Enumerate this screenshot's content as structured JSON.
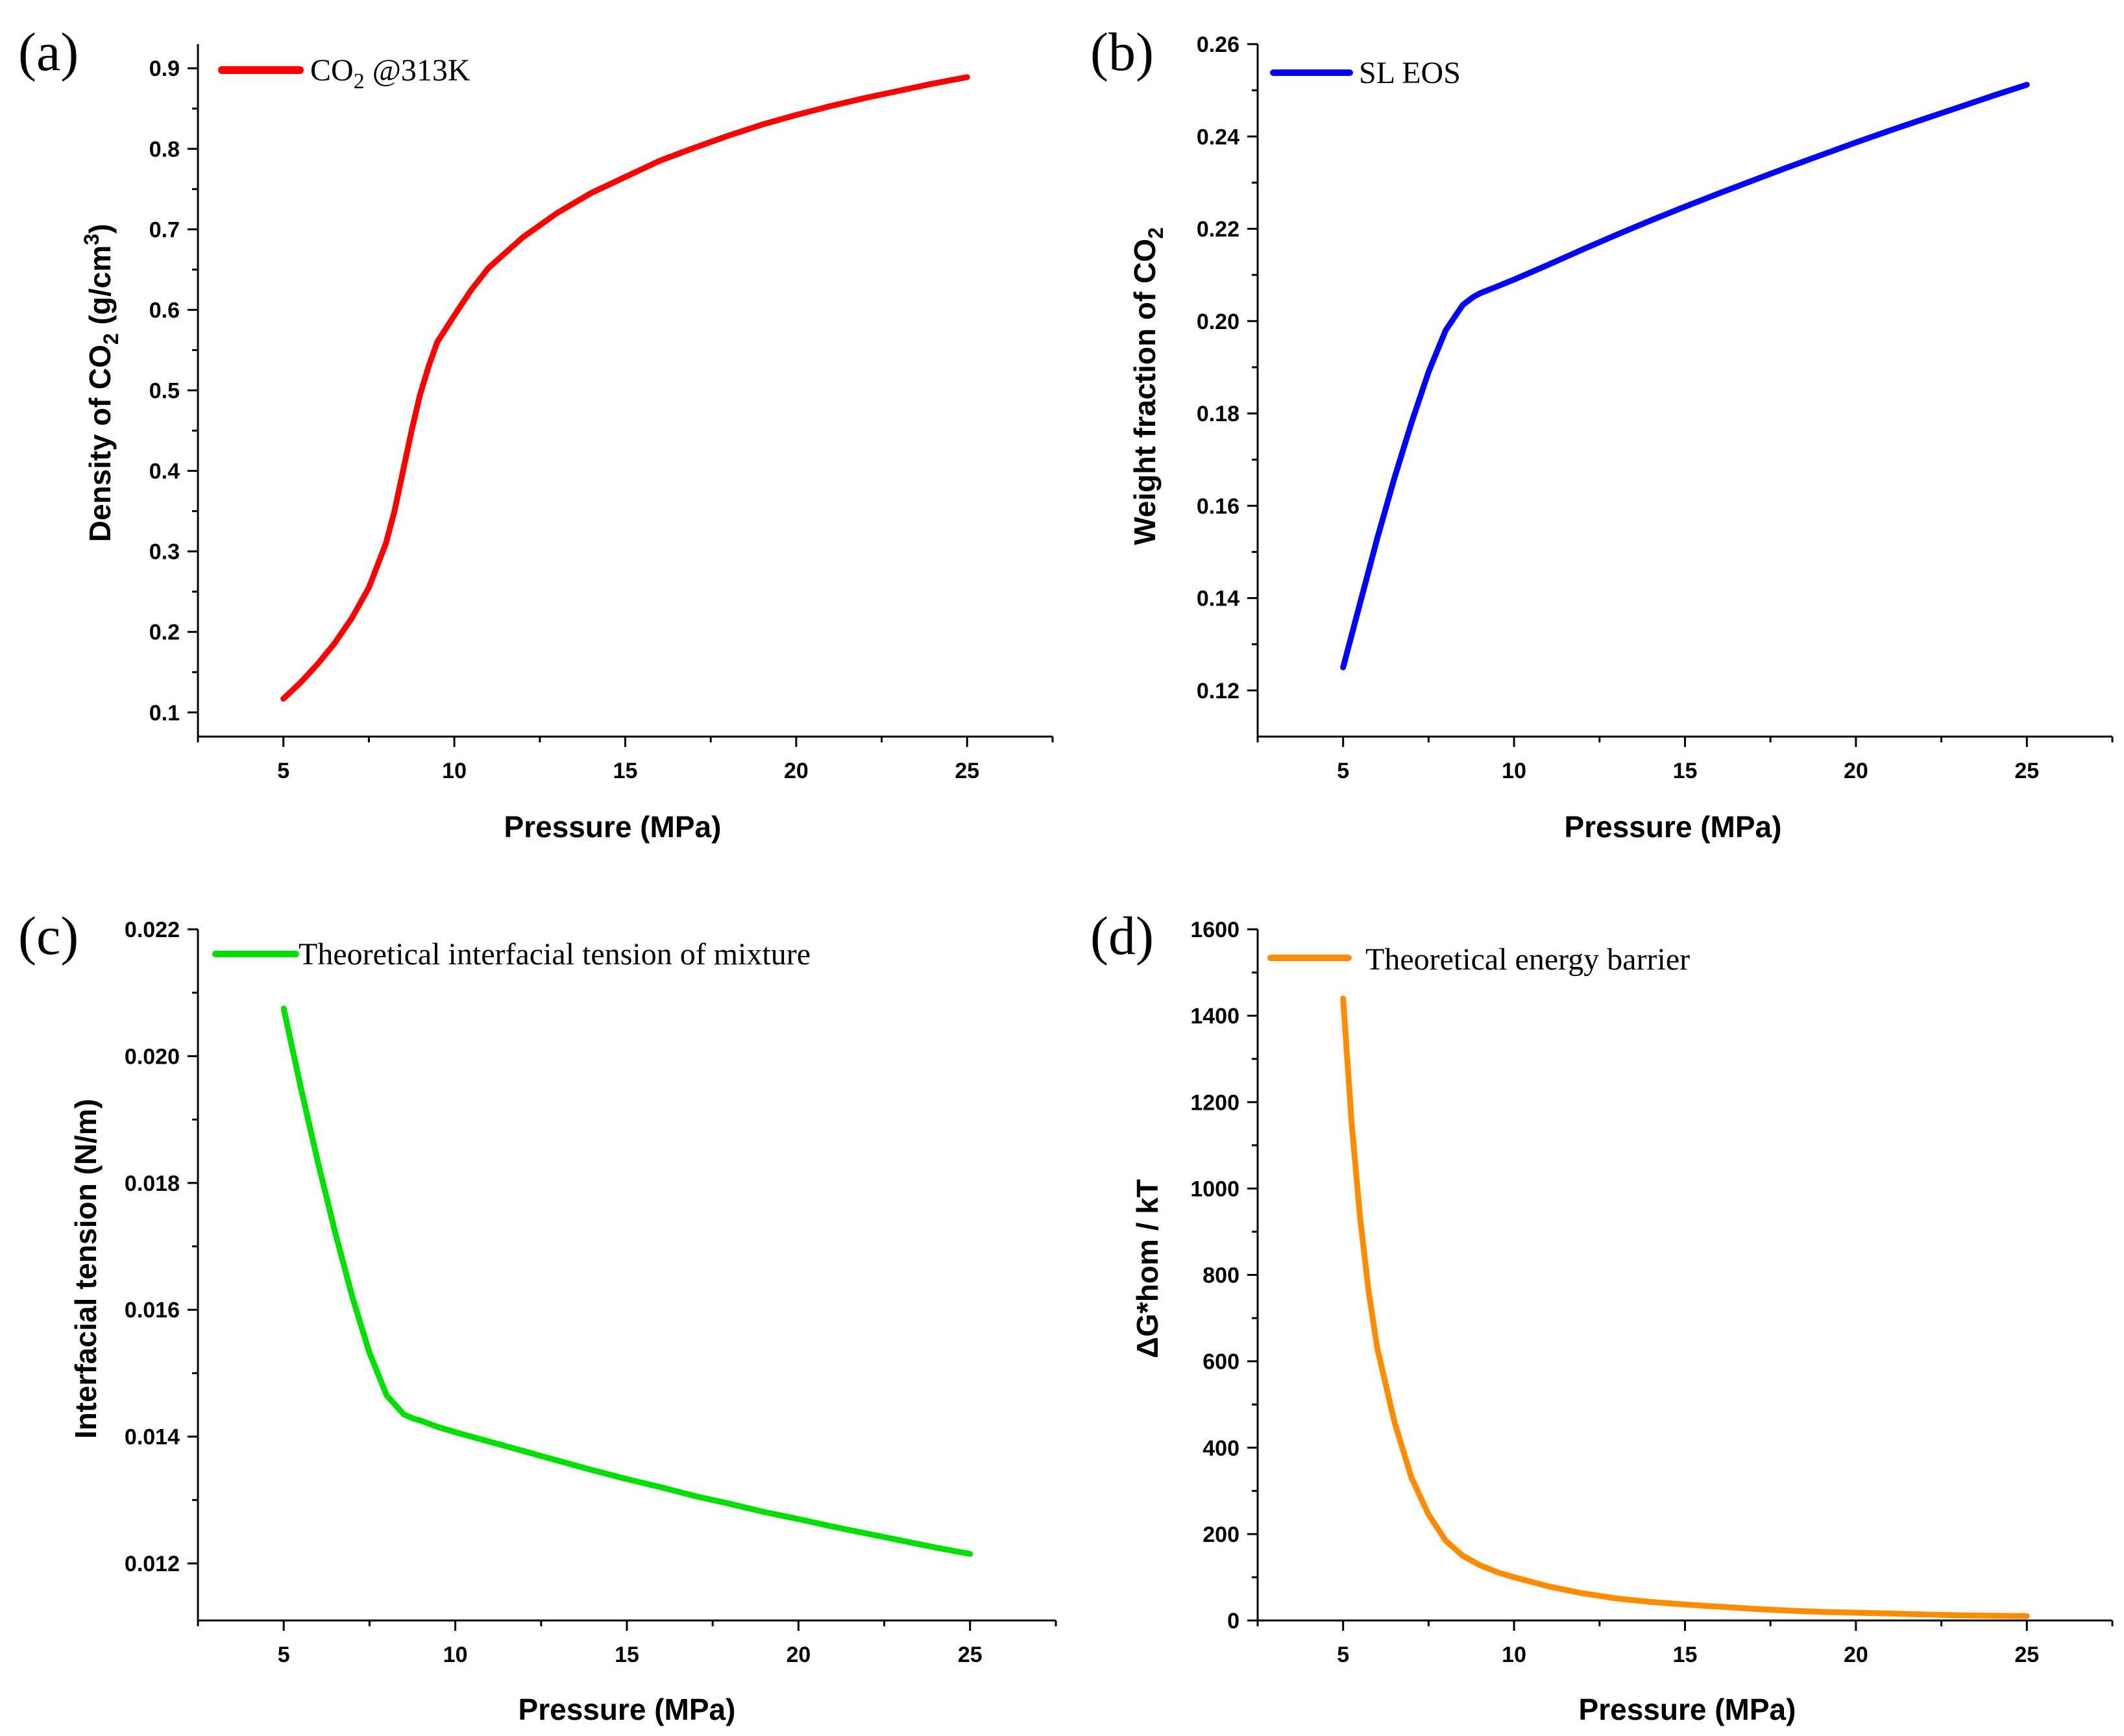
{
  "chart_data": [
    {
      "type": "line",
      "panel_label": "(a)",
      "xlabel": "Pressure (MPa)",
      "ylabel_parts": [
        "Density of CO",
        "2",
        " (g/cm",
        "3",
        ")"
      ],
      "xlim": [
        2.5,
        27.5
      ],
      "ylim": [
        0.07,
        0.93
      ],
      "xticks": [
        5,
        10,
        15,
        20,
        25
      ],
      "yticks": [
        0.1,
        0.2,
        0.3,
        0.4,
        0.5,
        0.6,
        0.7,
        0.8,
        0.9
      ],
      "xtick_labels": [
        "5",
        "10",
        "15",
        "20",
        "25"
      ],
      "ytick_labels": [
        "0.1",
        "0.2",
        "0.3",
        "0.4",
        "0.5",
        "0.6",
        "0.7",
        "0.8",
        "0.9"
      ],
      "legend_parts": [
        "CO",
        "2",
        " @313K"
      ],
      "legend_position": "top-left",
      "series": [
        {
          "name": "CO2 @313K",
          "color": "#ff0000",
          "x": [
            5,
            5.5,
            6,
            6.5,
            7,
            7.5,
            8,
            8.25,
            8.5,
            8.75,
            9,
            9.25,
            9.5,
            10,
            10.5,
            11,
            12,
            13,
            14,
            15,
            16,
            17,
            18,
            19,
            20,
            21,
            22,
            23,
            24,
            25
          ],
          "y": [
            0.117,
            0.137,
            0.16,
            0.186,
            0.217,
            0.255,
            0.31,
            0.35,
            0.4,
            0.45,
            0.495,
            0.53,
            0.56,
            0.593,
            0.625,
            0.652,
            0.69,
            0.72,
            0.745,
            0.765,
            0.785,
            0.801,
            0.816,
            0.83,
            0.842,
            0.853,
            0.863,
            0.872,
            0.881,
            0.889
          ]
        }
      ]
    },
    {
      "type": "line",
      "panel_label": "(b)",
      "xlabel": "Pressure (MPa)",
      "ylabel_parts": [
        "Weight fraction of CO",
        "2",
        "",
        "",
        ""
      ],
      "xlim": [
        2.5,
        27.5
      ],
      "ylim": [
        0.11,
        0.26
      ],
      "xticks": [
        5,
        10,
        15,
        20,
        25
      ],
      "yticks": [
        0.12,
        0.14,
        0.16,
        0.18,
        0.2,
        0.22,
        0.24,
        0.26
      ],
      "xtick_labels": [
        "5",
        "10",
        "15",
        "20",
        "25"
      ],
      "ytick_labels": [
        "0.12",
        "0.14",
        "0.16",
        "0.18",
        "0.20",
        "0.22",
        "0.24",
        "0.26"
      ],
      "legend_parts": [
        "SL EOS",
        "",
        ""
      ],
      "legend_position": "top-left",
      "series": [
        {
          "name": "SL EOS",
          "color": "#0000ff",
          "x": [
            5,
            5.5,
            6,
            6.5,
            7,
            7.5,
            8,
            8.5,
            8.8,
            9,
            9.5,
            10,
            11,
            12,
            13,
            14,
            15,
            16,
            17,
            18,
            19,
            20,
            21,
            22,
            23,
            24,
            25
          ],
          "y": [
            0.125,
            0.139,
            0.153,
            0.166,
            0.178,
            0.189,
            0.198,
            0.2035,
            0.2052,
            0.206,
            0.2075,
            0.209,
            0.2122,
            0.2155,
            0.2187,
            0.2218,
            0.2248,
            0.2277,
            0.2305,
            0.2333,
            0.236,
            0.2387,
            0.2413,
            0.2438,
            0.2463,
            0.2488,
            0.2512
          ]
        }
      ]
    },
    {
      "type": "line",
      "panel_label": "(c)",
      "xlabel": "Pressure (MPa)",
      "ylabel_parts": [
        "Interfacial tension (N/m)",
        "",
        "",
        "",
        ""
      ],
      "xlim": [
        2.5,
        27.5
      ],
      "ylim": [
        0.0111,
        0.022
      ],
      "xticks": [
        5,
        10,
        15,
        20,
        25
      ],
      "yticks": [
        0.012,
        0.014,
        0.016,
        0.018,
        0.02,
        0.022
      ],
      "xtick_labels": [
        "5",
        "10",
        "15",
        "20",
        "25"
      ],
      "ytick_labels": [
        "0.012",
        "0.014",
        "0.016",
        "0.018",
        "0.020",
        "0.022"
      ],
      "legend_parts": [
        "Theoretical interfacial tension of mixture",
        "",
        ""
      ],
      "legend_position": "top-left",
      "series": [
        {
          "name": "Theoretical interfacial tension of mixture",
          "color": "#00e000",
          "x": [
            5,
            5.5,
            6,
            6.5,
            7,
            7.5,
            8,
            8.5,
            8.8,
            9,
            9.5,
            10,
            11,
            12,
            13,
            14,
            15,
            16,
            17,
            18,
            19,
            20,
            21,
            22,
            23,
            24,
            25
          ],
          "y": [
            0.02075,
            0.0195,
            0.01832,
            0.01722,
            0.0162,
            0.01532,
            0.01465,
            0.01435,
            0.01428,
            0.01425,
            0.01415,
            0.01407,
            0.01392,
            0.01377,
            0.01362,
            0.01347,
            0.01333,
            0.0132,
            0.01306,
            0.01294,
            0.01281,
            0.0127,
            0.01258,
            0.01247,
            0.01236,
            0.01225,
            0.01215
          ]
        }
      ]
    },
    {
      "type": "line",
      "panel_label": "(d)",
      "xlabel": "Pressure (MPa)",
      "ylabel_parts": [
        "ΔG*hom / kT",
        "",
        "",
        "",
        ""
      ],
      "xlim": [
        2.5,
        27.5
      ],
      "ylim": [
        0,
        1600
      ],
      "xticks": [
        5,
        10,
        15,
        20,
        25
      ],
      "yticks": [
        0,
        200,
        400,
        600,
        800,
        1000,
        1200,
        1400,
        1600
      ],
      "xtick_labels": [
        "5",
        "10",
        "15",
        "20",
        "25"
      ],
      "ytick_labels": [
        "0",
        "200",
        "400",
        "600",
        "800",
        "1000",
        "1200",
        "1400",
        "1600"
      ],
      "legend_parts": [
        "Theoretical energy barrier",
        "",
        ""
      ],
      "legend_position": "top-left",
      "series": [
        {
          "name": "Theoretical energy barrier",
          "color": "#ff8c00",
          "x": [
            5,
            5.25,
            5.5,
            5.75,
            6,
            6.5,
            7,
            7.5,
            8,
            8.5,
            9,
            9.5,
            10,
            11,
            12,
            13,
            14,
            15,
            16,
            17,
            18,
            19,
            20,
            21,
            22,
            23,
            24,
            25
          ],
          "y": [
            1440,
            1150,
            930,
            760,
            630,
            460,
            330,
            245,
            185,
            150,
            128,
            112,
            100,
            79,
            63,
            51,
            43,
            37,
            32,
            27,
            23,
            20,
            18,
            16,
            14,
            12,
            11,
            10
          ]
        }
      ]
    }
  ]
}
